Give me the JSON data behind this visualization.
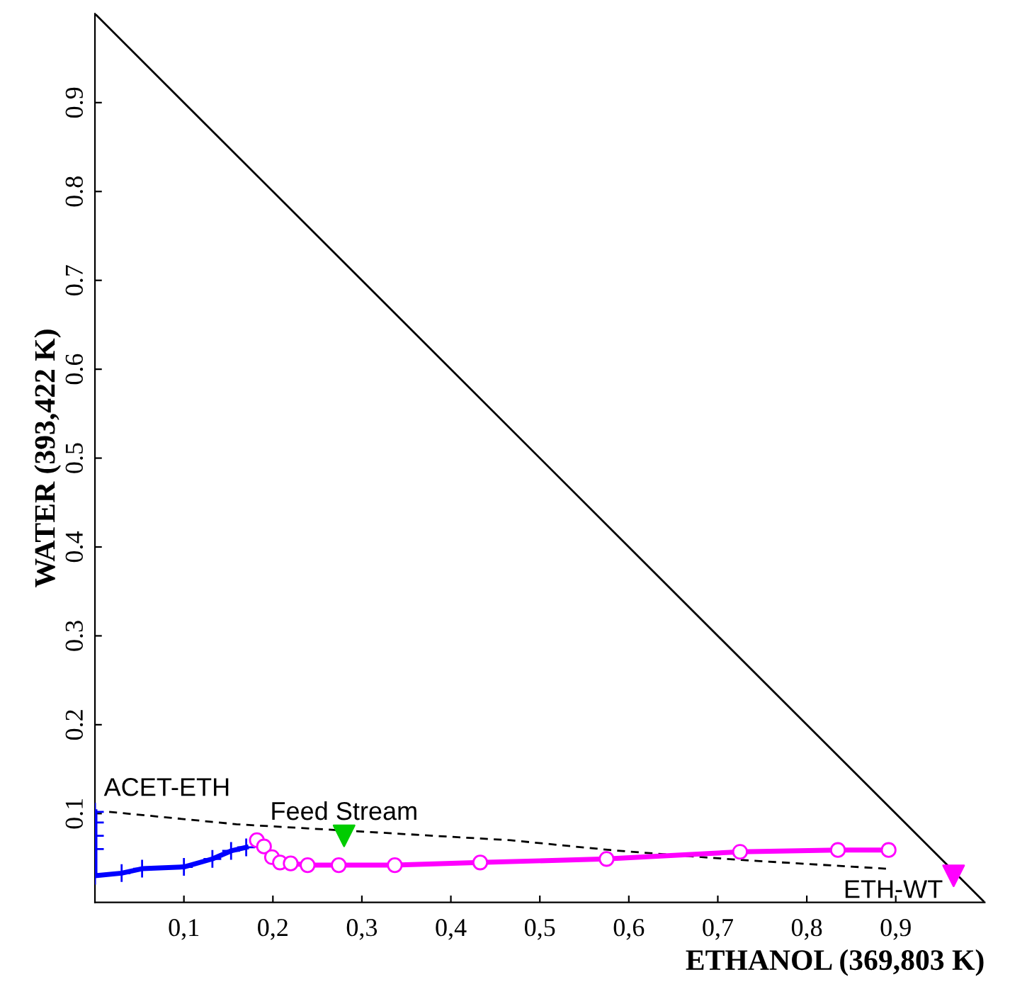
{
  "chart_data": {
    "type": "line",
    "xlabel": "ETHANOL (369,803 K)",
    "ylabel": "WATER (393,422 K)",
    "xlim": [
      0,
      1
    ],
    "ylim": [
      0,
      1
    ],
    "xticks": [
      {
        "value": 0.1,
        "label": "0,1"
      },
      {
        "value": 0.2,
        "label": "0,2"
      },
      {
        "value": 0.3,
        "label": "0,3"
      },
      {
        "value": 0.4,
        "label": "0,4"
      },
      {
        "value": 0.5,
        "label": "0,5"
      },
      {
        "value": 0.6,
        "label": "0,6"
      },
      {
        "value": 0.7,
        "label": "0,7"
      },
      {
        "value": 0.8,
        "label": "0,8"
      },
      {
        "value": 0.9,
        "label": "0,9"
      }
    ],
    "yticks": [
      0.1,
      0.2,
      0.3,
      0.4,
      0.5,
      0.6,
      0.7,
      0.8,
      0.9
    ],
    "grid": false,
    "legend": false,
    "series": [
      {
        "color": "#000000",
        "line_style": "solid",
        "marker": "none",
        "x": [
          0,
          1
        ],
        "values": [
          1,
          0
        ]
      },
      {
        "color": "#000000",
        "line_style": "dashed",
        "marker": "none",
        "x": [
          0.016,
          0.159,
          0.296,
          0.467,
          0.579,
          0.642,
          0.723,
          0.889
        ],
        "values": [
          0.102,
          0.088,
          0.08,
          0.07,
          0.059,
          0.054,
          0.048,
          0.038
        ]
      },
      {
        "color": "#0000ff",
        "line_style": "solid",
        "marker": "cross",
        "x": [
          0,
          0,
          0,
          0,
          0,
          0.03,
          0.053,
          0.1,
          0.132,
          0.153,
          0.17
        ],
        "values": [
          0.102,
          0.09,
          0.075,
          0.06,
          0.03,
          0.033,
          0.038,
          0.04,
          0.049,
          0.058,
          0.062
        ]
      },
      {
        "color": "#ff00ff",
        "line_style": "solid",
        "marker": "circle",
        "x": [
          0.182,
          0.19,
          0.199,
          0.208,
          0.22,
          0.239,
          0.274,
          0.337,
          0.433,
          0.575,
          0.725,
          0.835,
          0.892
        ],
        "values": [
          0.07,
          0.063,
          0.051,
          0.045,
          0.044,
          0.042,
          0.042,
          0.042,
          0.045,
          0.049,
          0.057,
          0.059,
          0.059
        ]
      },
      {
        "type": "scatter",
        "color": "#ff00ff",
        "marker": "triangle",
        "x": [
          0.965
        ],
        "values": [
          0.03
        ]
      },
      {
        "type": "scatter",
        "color": "#00cc00",
        "marker": "triangle",
        "x": [
          0.28
        ],
        "values": [
          0.075
        ]
      }
    ],
    "annotations": [
      {
        "text": "ACET-ETH",
        "x": 0,
        "y": 0.102
      },
      {
        "text": "Feed Stream",
        "x": 0.28,
        "y": 0.075
      },
      {
        "text": "ETH-WT",
        "x": 0.965,
        "y": 0.03
      }
    ]
  }
}
